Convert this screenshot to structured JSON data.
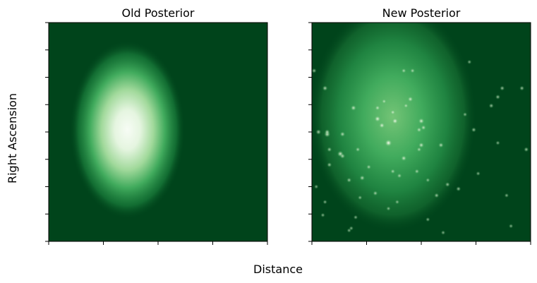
{
  "figure": {
    "ylabel": "Right Ascension",
    "xlabel": "Distance"
  },
  "chart_data": [
    {
      "type": "heatmap",
      "title": "Old Posterior",
      "colormap": "Greens",
      "xticks": 5,
      "yticks": 9,
      "tick_labels_shown": false,
      "blob": {
        "cx": 0.36,
        "cy": 0.49,
        "sx": 0.11,
        "sy": 0.17,
        "intensity": 1.0
      },
      "hotspots": []
    },
    {
      "type": "heatmap",
      "title": "New Posterior",
      "colormap": "Greens",
      "xticks": 5,
      "yticks": 9,
      "tick_labels_shown": false,
      "blob": {
        "cx": 0.37,
        "cy": 0.43,
        "sx": 0.16,
        "sy": 0.22,
        "intensity": 0.6
      },
      "hotspots": [
        [
          0.35,
          0.55,
          1.0
        ],
        [
          0.38,
          0.45,
          0.8
        ],
        [
          0.3,
          0.44,
          0.8
        ],
        [
          0.32,
          0.47,
          0.7
        ],
        [
          0.5,
          0.45,
          0.7
        ],
        [
          0.5,
          0.56,
          0.6
        ],
        [
          0.07,
          0.51,
          0.7
        ],
        [
          0.13,
          0.6,
          0.7
        ],
        [
          0.14,
          0.51,
          0.5
        ],
        [
          0.42,
          0.62,
          0.6
        ],
        [
          0.45,
          0.35,
          0.6
        ],
        [
          0.37,
          0.41,
          0.5
        ],
        [
          0.49,
          0.49,
          0.5
        ],
        [
          0.49,
          0.58,
          0.4
        ],
        [
          0.51,
          0.48,
          0.5
        ],
        [
          0.26,
          0.66,
          0.4
        ],
        [
          0.17,
          0.72,
          0.4
        ],
        [
          0.03,
          0.5,
          0.5
        ],
        [
          0.06,
          0.3,
          0.5
        ],
        [
          0.19,
          0.39,
          0.6
        ],
        [
          0.3,
          0.39,
          0.5
        ],
        [
          0.59,
          0.56,
          0.5
        ],
        [
          0.23,
          0.71,
          0.5
        ],
        [
          0.4,
          0.7,
          0.4
        ],
        [
          0.48,
          0.68,
          0.4
        ],
        [
          0.43,
          0.38,
          0.4
        ],
        [
          0.33,
          0.36,
          0.4
        ],
        [
          0.46,
          0.22,
          0.4
        ],
        [
          0.42,
          0.22,
          0.4
        ],
        [
          0.01,
          0.22,
          0.4
        ],
        [
          0.07,
          0.5,
          0.5
        ],
        [
          0.14,
          0.61,
          0.5
        ],
        [
          0.08,
          0.58,
          0.4
        ],
        [
          0.06,
          0.82,
          0.3
        ],
        [
          0.82,
          0.38,
          0.4
        ],
        [
          0.74,
          0.49,
          0.4
        ],
        [
          0.67,
          0.76,
          0.4
        ],
        [
          0.62,
          0.74,
          0.4
        ],
        [
          0.57,
          0.79,
          0.4
        ],
        [
          0.39,
          0.82,
          0.3
        ],
        [
          0.35,
          0.85,
          0.3
        ],
        [
          0.17,
          0.95,
          0.3
        ],
        [
          0.7,
          0.42,
          0.3
        ],
        [
          0.85,
          0.34,
          0.4
        ],
        [
          0.96,
          0.3,
          0.4
        ],
        [
          0.98,
          0.58,
          0.4
        ],
        [
          0.72,
          0.18,
          0.3
        ],
        [
          0.87,
          0.3,
          0.4
        ],
        [
          0.76,
          0.69,
          0.3
        ],
        [
          0.02,
          0.75,
          0.3
        ],
        [
          0.21,
          0.58,
          0.4
        ],
        [
          0.53,
          0.72,
          0.3
        ],
        [
          0.29,
          0.78,
          0.4
        ],
        [
          0.6,
          0.96,
          0.3
        ],
        [
          0.22,
          0.8,
          0.3
        ],
        [
          0.05,
          0.88,
          0.3
        ],
        [
          0.85,
          0.55,
          0.3
        ],
        [
          0.2,
          0.89,
          0.3
        ],
        [
          0.08,
          0.65,
          0.4
        ],
        [
          0.37,
          0.68,
          0.4
        ],
        [
          0.18,
          0.94,
          0.3
        ],
        [
          0.91,
          0.93,
          0.3
        ],
        [
          0.89,
          0.79,
          0.3
        ],
        [
          0.53,
          0.9,
          0.3
        ]
      ]
    }
  ]
}
